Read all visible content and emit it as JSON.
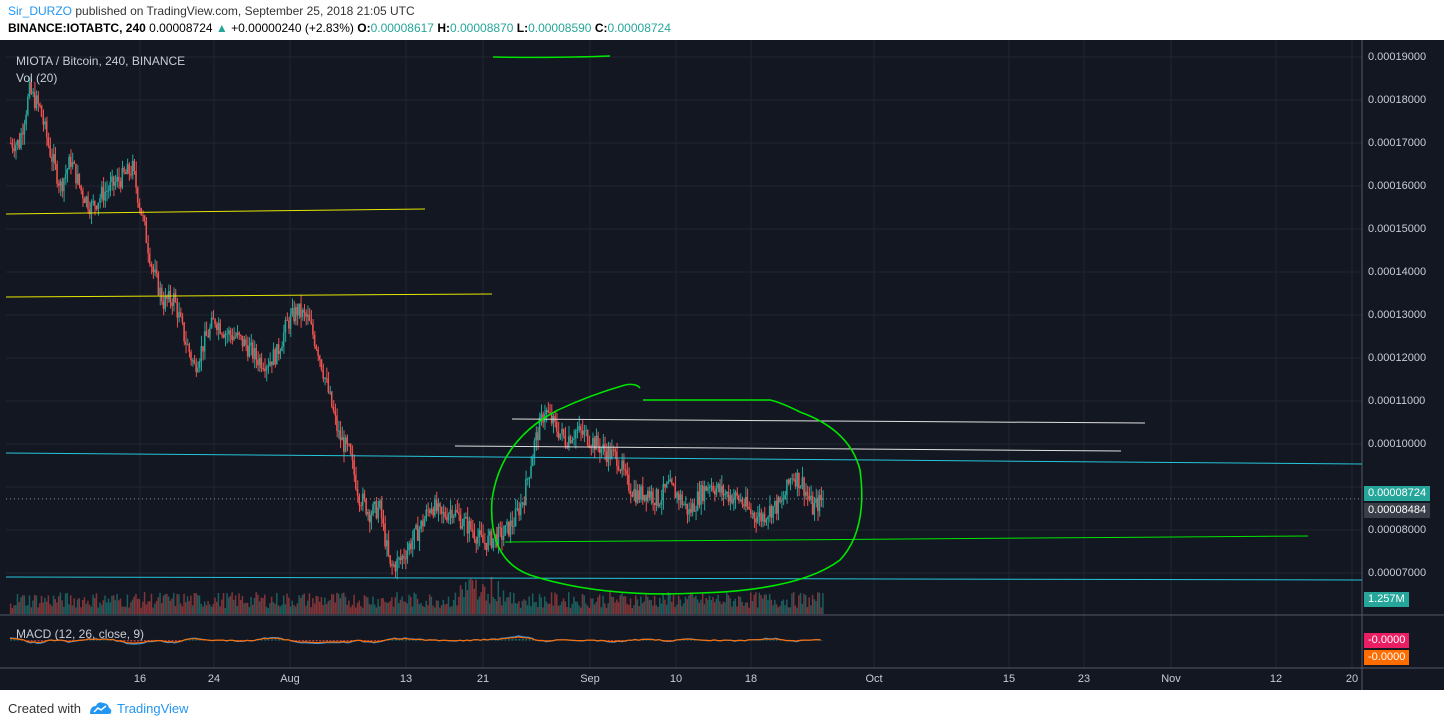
{
  "header": {
    "author": "Sir_DURZO",
    "published": "published on TradingView.com, September 25, 2018 21:05 UTC",
    "symbol": "BINANCE:IOTABTC, 240",
    "last_price": "0.00008724",
    "change": "+0.00000240 (+2.83%)",
    "open_label": "O:",
    "open": "0.00008617",
    "high_label": "H:",
    "high": "0.00008870",
    "low_label": "L:",
    "low": "0.00008590",
    "close_label": "C:",
    "close": "0.00008724"
  },
  "pane": {
    "title": "MIOTA / Bitcoin, 240, BINANCE",
    "vol_label": "Vol (20)",
    "macd_label": "MACD (12, 26, close, 9)"
  },
  "price_scale": [
    "0.00019000",
    "0.00018000",
    "0.00017000",
    "0.00016000",
    "0.00015000",
    "0.00014000",
    "0.00013000",
    "0.00012000",
    "0.00011000",
    "0.00010000",
    "0.00008000",
    "0.00007000"
  ],
  "tags": {
    "last": "0.00008724",
    "secondary": "0.00008484",
    "volume": "1.257M",
    "macd1": "-0.0000",
    "macd2": "-0.0000"
  },
  "date_axis": [
    "16",
    "24",
    "Aug",
    "13",
    "21",
    "Sep",
    "10",
    "18",
    "Oct",
    "15",
    "23",
    "Nov",
    "12",
    "20"
  ],
  "footer": {
    "created": "Created with",
    "brand": "TradingView"
  },
  "colors": {
    "background": "#131722",
    "up": "#26a69a",
    "down": "#ef5350",
    "accent": "#2196f3",
    "annotation_green": "#00e600",
    "annotation_yellow": "#e6e600",
    "annotation_cyan": "#26c6da"
  },
  "chart_data": {
    "type": "candlestick",
    "title": "MIOTA / Bitcoin, 240, BINANCE",
    "ylim": [
      6.2e-05,
      0.000193
    ],
    "close_series": [
      {
        "date": "Jul 09",
        "close": 0.00017
      },
      {
        "date": "Jul 10",
        "close": 0.000182
      },
      {
        "date": "Jul 11",
        "close": 0.000178
      },
      {
        "date": "Jul 12",
        "close": 0.000168
      },
      {
        "date": "Jul 13",
        "close": 0.00016
      },
      {
        "date": "Jul 14",
        "close": 0.000166
      },
      {
        "date": "Jul 15",
        "close": 0.000159
      },
      {
        "date": "Jul 16",
        "close": 0.000155
      },
      {
        "date": "Jul 17",
        "close": 0.000158
      },
      {
        "date": "Jul 18",
        "close": 0.00016
      },
      {
        "date": "Jul 19",
        "close": 0.000162
      },
      {
        "date": "Jul 20",
        "close": 0.000164
      },
      {
        "date": "Jul 21",
        "close": 0.000152
      },
      {
        "date": "Jul 22",
        "close": 0.00014
      },
      {
        "date": "Jul 23",
        "close": 0.000133
      },
      {
        "date": "Jul 24",
        "close": 0.000134
      },
      {
        "date": "Jul 25",
        "close": 0.000125
      },
      {
        "date": "Jul 26",
        "close": 0.000118
      },
      {
        "date": "Jul 27",
        "close": 0.000124
      },
      {
        "date": "Jul 28",
        "close": 0.000129
      },
      {
        "date": "Jul 29",
        "close": 0.000126
      },
      {
        "date": "Jul 30",
        "close": 0.000125
      },
      {
        "date": "Jul 31",
        "close": 0.000123
      },
      {
        "date": "Aug 01",
        "close": 0.00012
      },
      {
        "date": "Aug 02",
        "close": 0.000119
      },
      {
        "date": "Aug 03",
        "close": 0.000121
      },
      {
        "date": "Aug 04",
        "close": 0.000128
      },
      {
        "date": "Aug 05",
        "close": 0.000131
      },
      {
        "date": "Aug 06",
        "close": 0.000129
      },
      {
        "date": "Aug 07",
        "close": 0.000122
      },
      {
        "date": "Aug 08",
        "close": 0.000112
      },
      {
        "date": "Aug 09",
        "close": 0.000102
      },
      {
        "date": "Aug 10",
        "close": 9.8e-05
      },
      {
        "date": "Aug 11",
        "close": 8.8e-05
      },
      {
        "date": "Aug 12",
        "close": 8.4e-05
      },
      {
        "date": "Aug 13",
        "close": 8.5e-05
      },
      {
        "date": "Aug 14",
        "close": 7.1e-05
      },
      {
        "date": "Aug 15",
        "close": 7.3e-05
      },
      {
        "date": "Aug 16",
        "close": 7.7e-05
      },
      {
        "date": "Aug 17",
        "close": 8.1e-05
      },
      {
        "date": "Aug 18",
        "close": 8.6e-05
      },
      {
        "date": "Aug 19",
        "close": 8.3e-05
      },
      {
        "date": "Aug 20",
        "close": 8.5e-05
      },
      {
        "date": "Aug 21",
        "close": 8.2e-05
      },
      {
        "date": "Aug 22",
        "close": 8e-05
      },
      {
        "date": "Aug 23",
        "close": 7.7e-05
      },
      {
        "date": "Aug 24",
        "close": 7.8e-05
      },
      {
        "date": "Aug 25",
        "close": 7.9e-05
      },
      {
        "date": "Aug 26",
        "close": 8.2e-05
      },
      {
        "date": "Aug 27",
        "close": 8.8e-05
      },
      {
        "date": "Aug 28",
        "close": 0.0001
      },
      {
        "date": "Aug 29",
        "close": 0.000108
      },
      {
        "date": "Aug 30",
        "close": 0.000104
      },
      {
        "date": "Aug 31",
        "close": 0.000101
      },
      {
        "date": "Sep 01",
        "close": 0.000103
      },
      {
        "date": "Sep 02",
        "close": 0.000102
      },
      {
        "date": "Sep 03",
        "close": 0.0001
      },
      {
        "date": "Sep 04",
        "close": 9.8e-05
      },
      {
        "date": "Sep 05",
        "close": 9.7e-05
      },
      {
        "date": "Sep 06",
        "close": 9.1e-05
      },
      {
        "date": "Sep 07",
        "close": 8.8e-05
      },
      {
        "date": "Sep 08",
        "close": 8.9e-05
      },
      {
        "date": "Sep 09",
        "close": 8.7e-05
      },
      {
        "date": "Sep 10",
        "close": 9e-05
      },
      {
        "date": "Sep 11",
        "close": 8.8e-05
      },
      {
        "date": "Sep 12",
        "close": 8.4e-05
      },
      {
        "date": "Sep 13",
        "close": 8.8e-05
      },
      {
        "date": "Sep 14",
        "close": 9.1e-05
      },
      {
        "date": "Sep 15",
        "close": 8.9e-05
      },
      {
        "date": "Sep 16",
        "close": 8.8e-05
      },
      {
        "date": "Sep 17",
        "close": 8.7e-05
      },
      {
        "date": "Sep 18",
        "close": 8.4e-05
      },
      {
        "date": "Sep 19",
        "close": 8.3e-05
      },
      {
        "date": "Sep 20",
        "close": 8.5e-05
      },
      {
        "date": "Sep 21",
        "close": 8.6e-05
      },
      {
        "date": "Sep 22",
        "close": 9.3e-05
      },
      {
        "date": "Sep 23",
        "close": 9.1e-05
      },
      {
        "date": "Sep 24",
        "close": 8.5e-05
      },
      {
        "date": "Sep 25",
        "close": 8.72e-05
      }
    ]
  }
}
